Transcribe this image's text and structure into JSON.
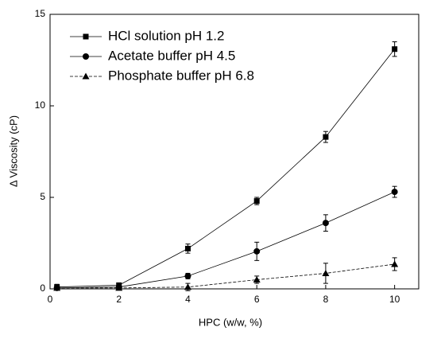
{
  "chart_data": {
    "type": "line",
    "x_label": "HPC (w/w, %)",
    "y_label": "Δ Viscosity (cP)",
    "x": [
      0.2,
      2,
      4,
      6,
      8,
      10
    ],
    "series": [
      {
        "name": "HCl solution pH 1.2",
        "color": "#000000",
        "marker": "square",
        "dash": false,
        "values": [
          0.1,
          0.2,
          2.2,
          4.8,
          8.3,
          13.1
        ],
        "errors": [
          0.15,
          0.1,
          0.25,
          0.2,
          0.3,
          0.4
        ]
      },
      {
        "name": "Acetate buffer pH 4.5",
        "color": "#000000",
        "marker": "circle",
        "dash": false,
        "values": [
          0.05,
          0.1,
          0.7,
          2.05,
          3.6,
          5.3
        ],
        "errors": [
          0.1,
          0.1,
          0.15,
          0.5,
          0.45,
          0.3
        ]
      },
      {
        "name": "Phosphate buffer pH 6.8",
        "color": "#000000",
        "marker": "triangle",
        "dash": true,
        "values": [
          0.05,
          0.05,
          0.1,
          0.5,
          0.85,
          1.35
        ],
        "errors": [
          0.1,
          0.05,
          0.2,
          0.2,
          0.55,
          0.35
        ]
      }
    ],
    "xlim": [
      0,
      10.7
    ],
    "ylim": [
      0,
      15
    ],
    "xticks": [
      0,
      2,
      4,
      6,
      8,
      10
    ],
    "yticks": [
      0,
      5,
      10,
      15
    ],
    "grid": false,
    "legend": "top-left"
  }
}
